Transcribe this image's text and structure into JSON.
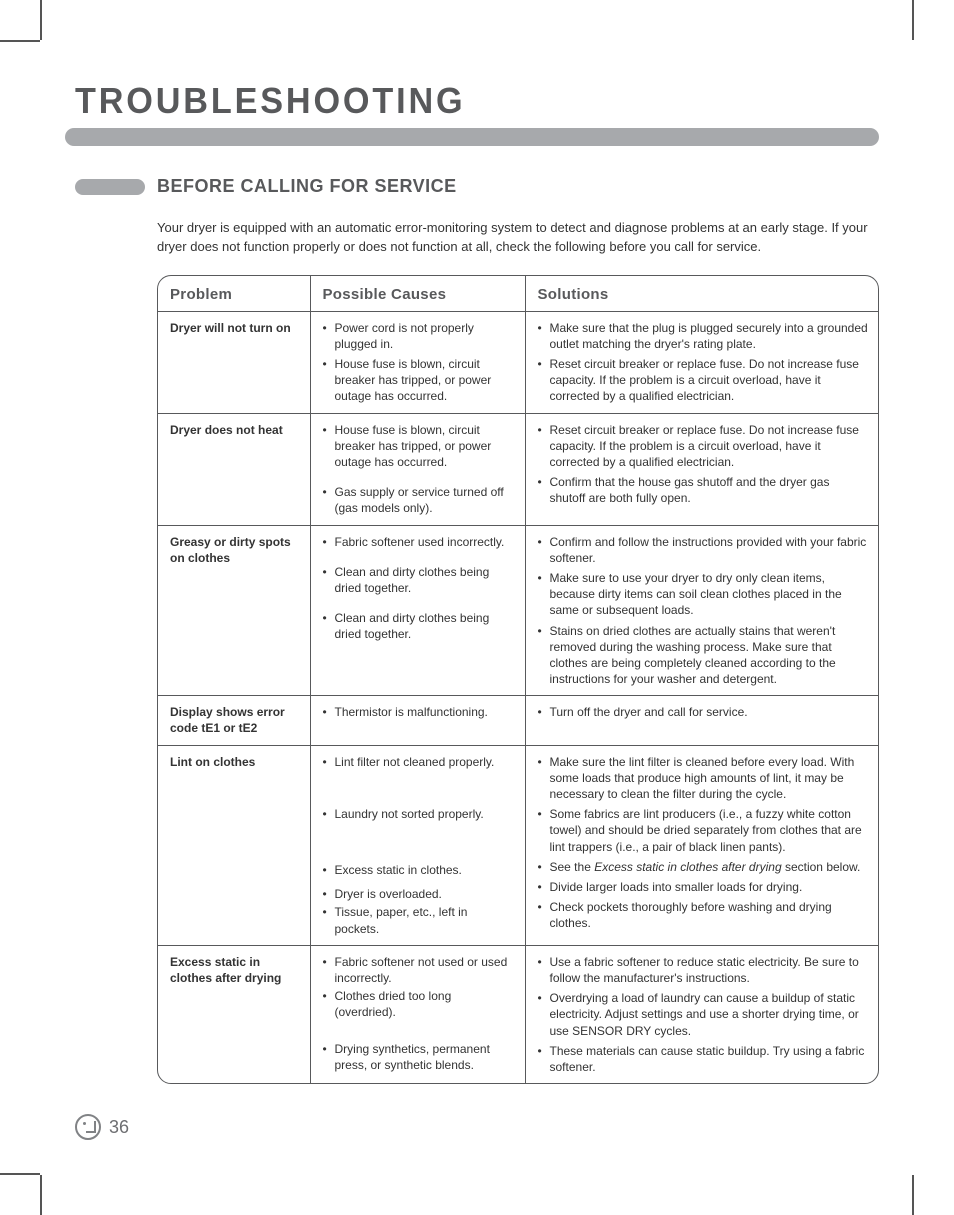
{
  "page": {
    "title": "TROUBLESHOOTING",
    "section_heading": "BEFORE CALLING FOR SERVICE",
    "intro": "Your dryer is equipped with an automatic error-monitoring system to detect and diagnose problems at an early stage. If your dryer does not function properly or does not function at all, check the following before you call for service.",
    "page_number": "36"
  },
  "table": {
    "headers": {
      "problem": "Problem",
      "causes": "Possible Causes",
      "solutions": "Solutions"
    },
    "rows": [
      {
        "problem": "Dryer will not turn on",
        "causes": [
          "Power cord is not properly plugged in.",
          "House fuse is blown, circuit breaker has tripped, or power outage has occurred."
        ],
        "solutions": [
          "Make sure that the plug is plugged securely into a grounded outlet matching the dryer's rating plate.",
          "Reset circuit breaker or replace fuse. Do not increase fuse capacity. If the problem is a circuit overload, have it corrected by a qualified electrician."
        ]
      },
      {
        "problem": "Dryer does not heat",
        "causes_spaced": true,
        "causes": [
          "House fuse is blown, circuit breaker has tripped, or power outage has occurred.",
          "Gas supply or service turned off (gas models only)."
        ],
        "solutions": [
          "Reset circuit breaker or replace fuse. Do not increase fuse capacity. If the problem is a circuit overload, have it corrected by a qualified electrician.",
          "Confirm that the house gas shutoff and the dryer gas shutoff are both fully open."
        ]
      },
      {
        "problem": "Greasy or dirty spots on clothes",
        "causes_spaced": true,
        "causes": [
          "Fabric softener used incorrectly.",
          "Clean and dirty clothes being dried together.",
          "Clean and dirty clothes being dried together."
        ],
        "solutions": [
          "Confirm and follow the instructions provided with your fabric softener.",
          "Make sure to use your dryer to dry only clean items, because dirty items can soil clean clothes placed in the same or subsequent loads.",
          "Stains on dried clothes are actually stains that weren't removed during the washing process. Make sure that clothes are being completely cleaned according to the instructions for your washer and detergent."
        ]
      },
      {
        "problem": "Display shows error code tE1 or tE2",
        "causes": [
          "Thermistor is malfunctioning."
        ],
        "solutions": [
          "Turn off the dryer and call for service."
        ]
      },
      {
        "problem": "Lint on clothes",
        "causes_spaced": true,
        "causes": [
          "Lint filter not cleaned properly.",
          "Laundry not sorted properly.",
          "Excess static in clothes.",
          "Dryer is overloaded.",
          "Tissue, paper, etc., left in pockets."
        ],
        "causes_gaps": [
          36,
          40,
          8,
          2,
          0
        ],
        "solutions": [
          "Make sure the lint filter is cleaned before every load. With some loads that produce high amounts of lint, it may be necessary to clean the filter during the cycle.",
          "Some fabrics are lint producers (i.e., a fuzzy white cotton towel) and should be dried separately from clothes that are lint trappers (i.e., a pair of black linen pants).",
          "See the <span class=\"italic\">Excess static in clothes after drying</span> section below.",
          "Divide larger loads into smaller loads for drying.",
          "Check pockets thoroughly before washing and drying clothes."
        ]
      },
      {
        "problem": "Excess static in clothes after drying",
        "causes_spaced": true,
        "causes": [
          "Fabric softener not used or used incorrectly.",
          "Clothes dried too long (overdried).",
          "Drying synthetics, permanent press, or synthetic blends."
        ],
        "causes_gaps": [
          2,
          20,
          0
        ],
        "solutions": [
          "Use a fabric softener to reduce static electricity. Be sure to follow the manufacturer's instructions.",
          "Overdrying a load of laundry can cause a buildup of static electricity. Adjust settings and use a shorter drying time, or use SENSOR DRY cycles.",
          "These materials can cause static buildup. Try using a fabric softener."
        ]
      }
    ]
  },
  "colors": {
    "heading_gray": "#58595b",
    "bar_gray": "#a7a9ac",
    "text": "#333333",
    "border": "#58595b"
  }
}
